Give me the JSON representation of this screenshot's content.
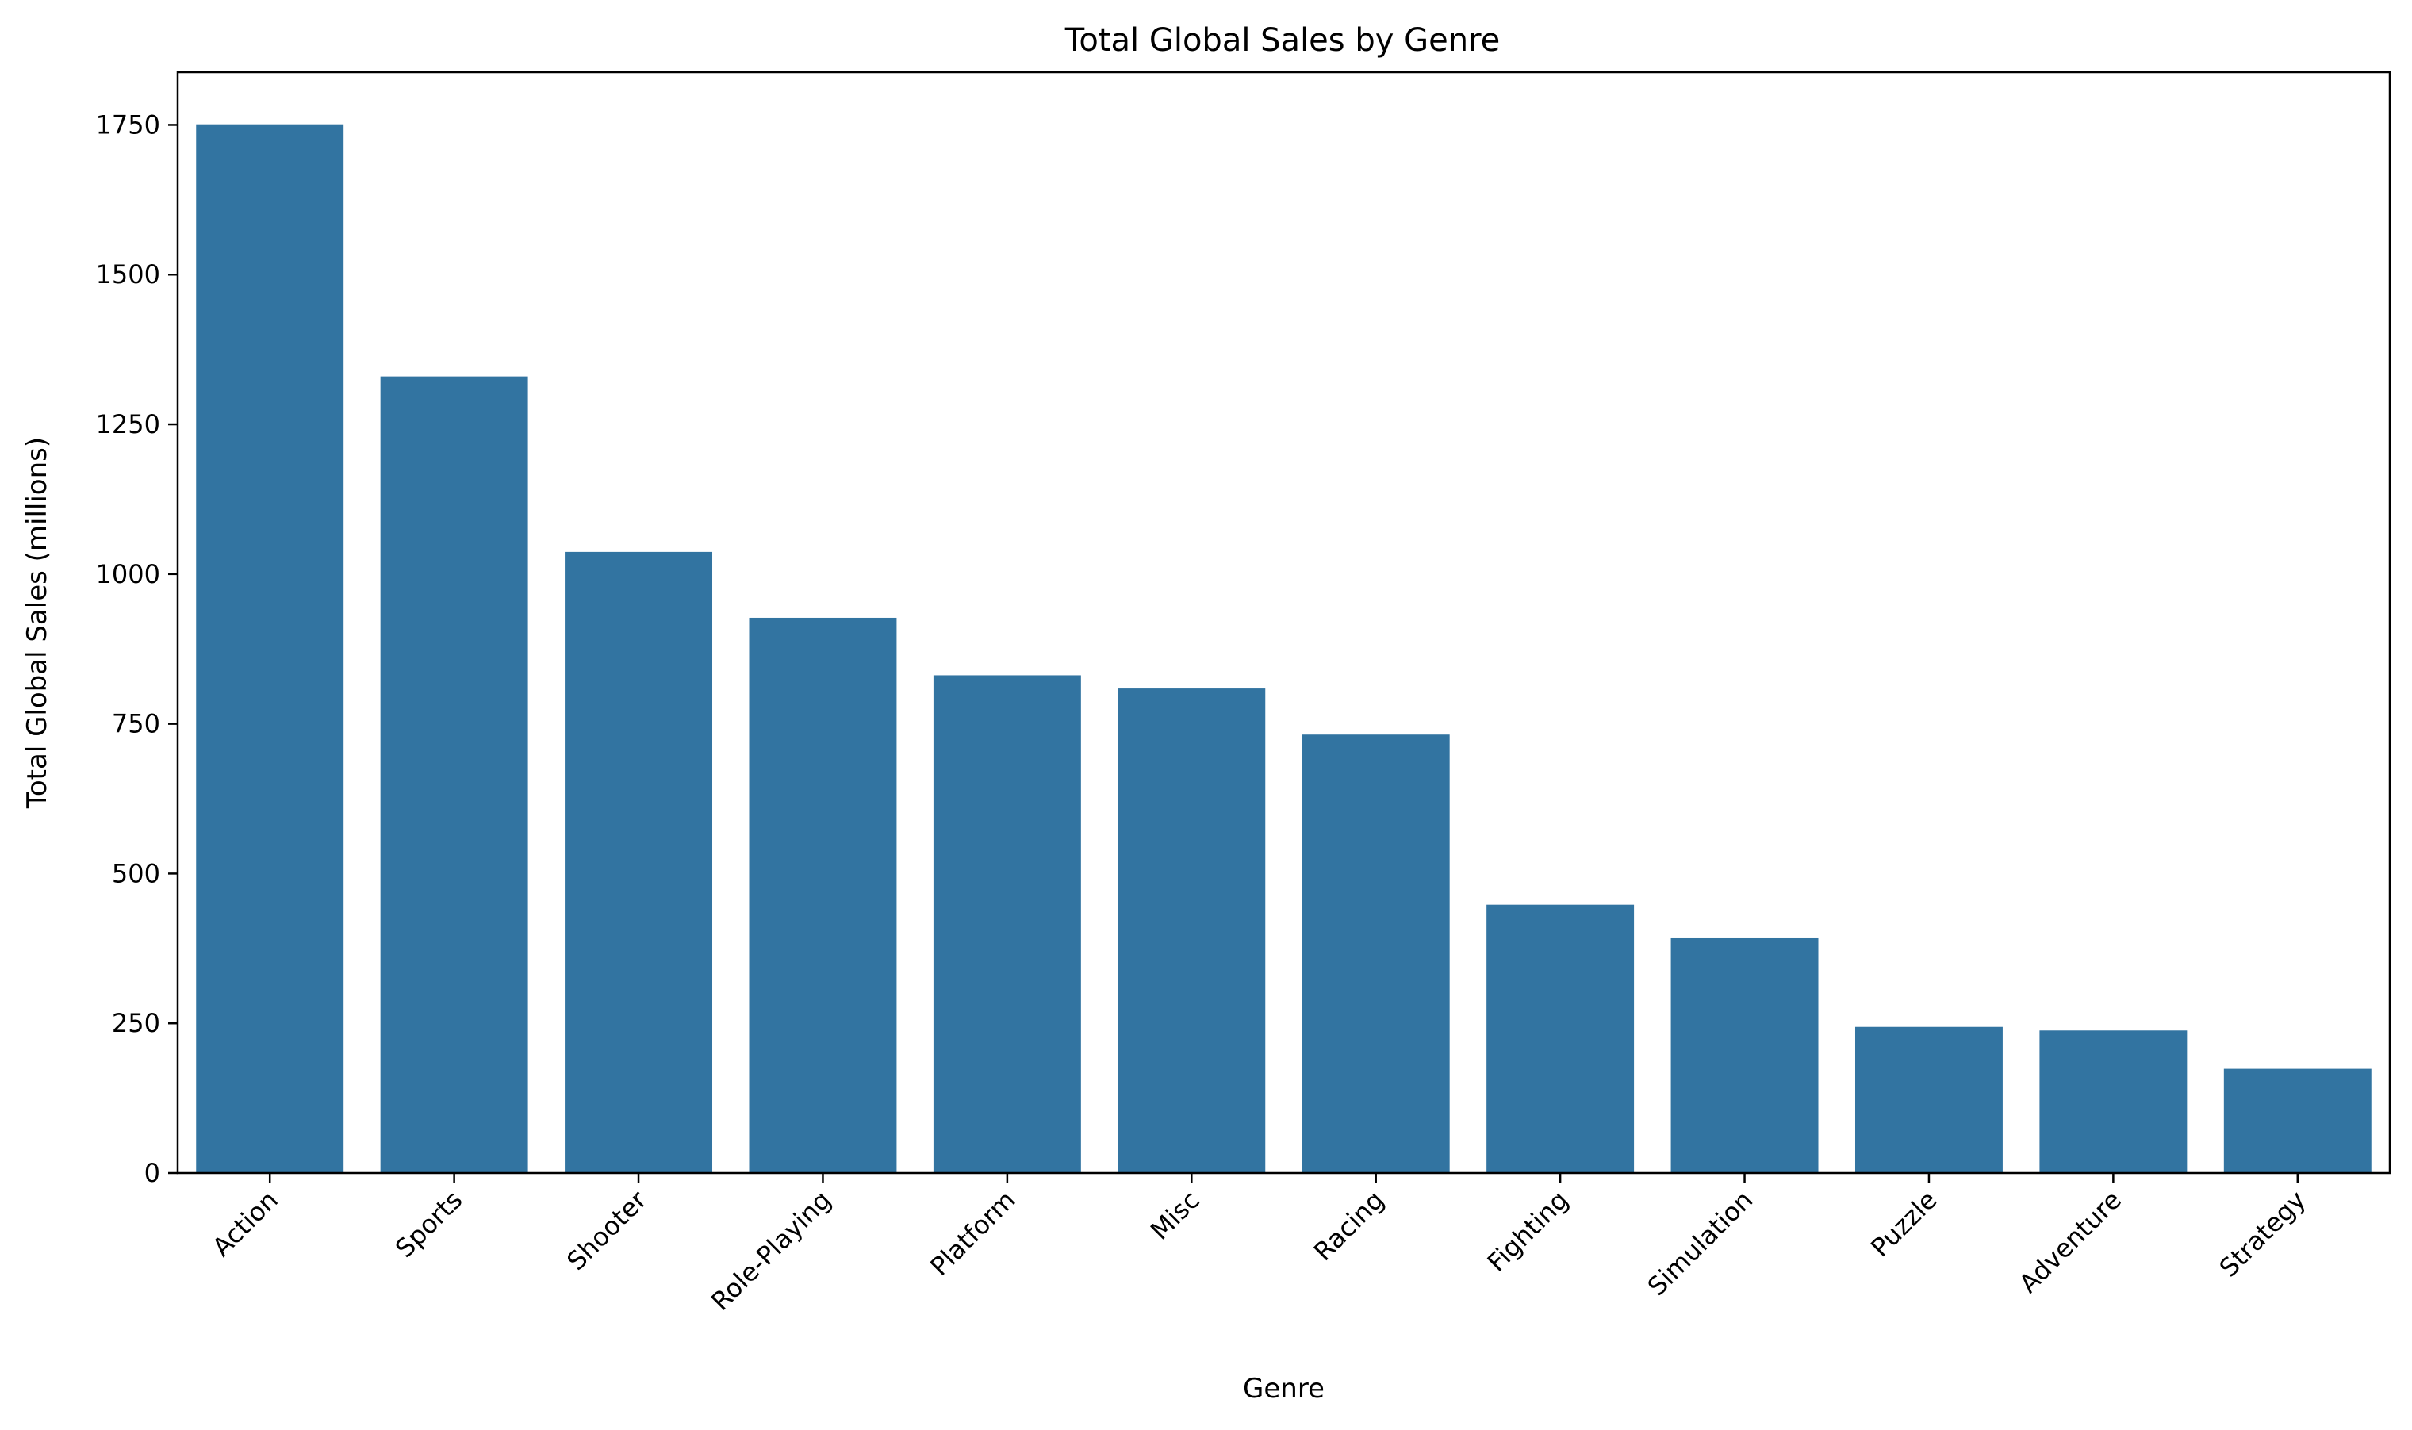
{
  "chart_data": {
    "type": "bar",
    "title": "Total Global Sales by Genre",
    "xlabel": "Genre",
    "ylabel": "Total Global Sales (millions)",
    "categories": [
      "Action",
      "Sports",
      "Shooter",
      "Role-Playing",
      "Platform",
      "Misc",
      "Racing",
      "Fighting",
      "Simulation",
      "Puzzle",
      "Adventure",
      "Strategy"
    ],
    "values": [
      1751,
      1330,
      1037,
      927,
      831,
      809,
      732,
      448,
      392,
      244,
      238,
      174
    ],
    "ylim": [
      0,
      1838
    ],
    "yticks": [
      0,
      250,
      500,
      750,
      1000,
      1250,
      1500,
      1750
    ],
    "bar_color": "#3274a1",
    "grid": false,
    "legend": "none"
  }
}
